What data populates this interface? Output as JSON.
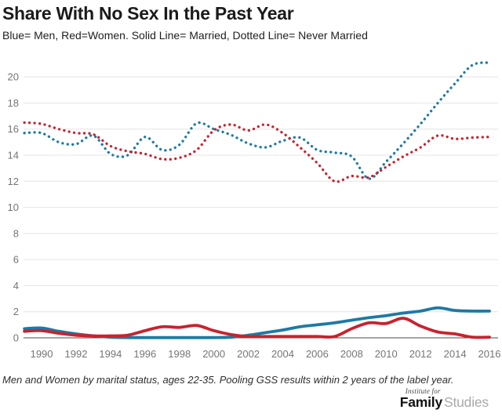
{
  "header": {
    "title": "Share With No Sex In the Past Year",
    "subtitle": "Blue= Men, Red=Women. Solid Line= Married, Dotted Line= Never Married"
  },
  "footnote": "Men and Women by marital status, ages 22-35. Pooling GSS results within 2 years of the label year.",
  "logo": {
    "institute_for": "Institute for",
    "family": "Family",
    "studies": "Studies"
  },
  "colors": {
    "men": "#1d7aa5",
    "women": "#c9222e",
    "grid": "#e4e4e4",
    "axis": "#4d4d4d",
    "tick_label": "#757575",
    "background": "#ffffff"
  },
  "chart_data": {
    "type": "line",
    "title": "Share With No Sex In the Past Year",
    "subtitle": "Blue= Men, Red=Women. Solid Line= Married, Dotted Line= Never Married",
    "xlabel": "",
    "ylabel": "",
    "grid": true,
    "legend": {
      "blue": "Men",
      "red": "Women",
      "solid": "Married",
      "dotted": "Never Married"
    },
    "xlim": [
      1988.95,
      2016.5
    ],
    "ylim": [
      0,
      21.45
    ],
    "x_tick_labels": [
      1990,
      1992,
      1994,
      1996,
      1998,
      2000,
      2002,
      2004,
      2006,
      2008,
      2010,
      2012,
      2014,
      2016
    ],
    "y_ticks": [
      0,
      2,
      4,
      6,
      8,
      10,
      12,
      14,
      16,
      18,
      20
    ],
    "x": [
      1989,
      1990,
      1991,
      1992,
      1993,
      1994,
      1995,
      1996,
      1997,
      1998,
      1999,
      2000,
      2001,
      2002,
      2003,
      2004,
      2005,
      2006,
      2007,
      2008,
      2009,
      2010,
      2011,
      2012,
      2013,
      2014,
      2015,
      2016
    ],
    "series": [
      {
        "name": "Never Married Men",
        "color_key": "men",
        "style": "dotted",
        "values": [
          15.7,
          15.7,
          15.0,
          14.85,
          15.5,
          14.1,
          14.0,
          15.4,
          14.4,
          14.8,
          16.45,
          16.0,
          15.55,
          14.9,
          14.6,
          15.1,
          15.35,
          14.4,
          14.2,
          13.9,
          12.2,
          13.5,
          14.9,
          16.4,
          18.0,
          19.5,
          20.9,
          21.1
        ]
      },
      {
        "name": "Never Married Women",
        "color_key": "women",
        "style": "dotted",
        "values": [
          16.5,
          16.4,
          16.0,
          15.7,
          15.6,
          14.7,
          14.3,
          14.1,
          13.7,
          13.8,
          14.4,
          15.9,
          16.35,
          15.9,
          16.35,
          15.7,
          14.6,
          13.4,
          12.0,
          12.4,
          12.3,
          13.1,
          13.9,
          14.6,
          15.5,
          15.25,
          15.35,
          15.4
        ]
      },
      {
        "name": "Married Men",
        "color_key": "men",
        "style": "solid",
        "values": [
          0.7,
          0.75,
          0.5,
          0.3,
          0.15,
          0.05,
          0.02,
          0.02,
          0.02,
          0.02,
          0.02,
          0.02,
          0.05,
          0.2,
          0.4,
          0.6,
          0.85,
          1.0,
          1.15,
          1.35,
          1.55,
          1.7,
          1.9,
          2.05,
          2.3,
          2.1,
          2.05,
          2.05
        ]
      },
      {
        "name": "Married Women",
        "color_key": "women",
        "style": "solid",
        "values": [
          0.5,
          0.55,
          0.35,
          0.2,
          0.15,
          0.15,
          0.2,
          0.55,
          0.85,
          0.8,
          0.95,
          0.55,
          0.25,
          0.1,
          0.1,
          0.1,
          0.1,
          0.1,
          0.1,
          0.7,
          1.15,
          1.1,
          1.5,
          0.9,
          0.45,
          0.3,
          0.05,
          0.05
        ]
      }
    ]
  }
}
